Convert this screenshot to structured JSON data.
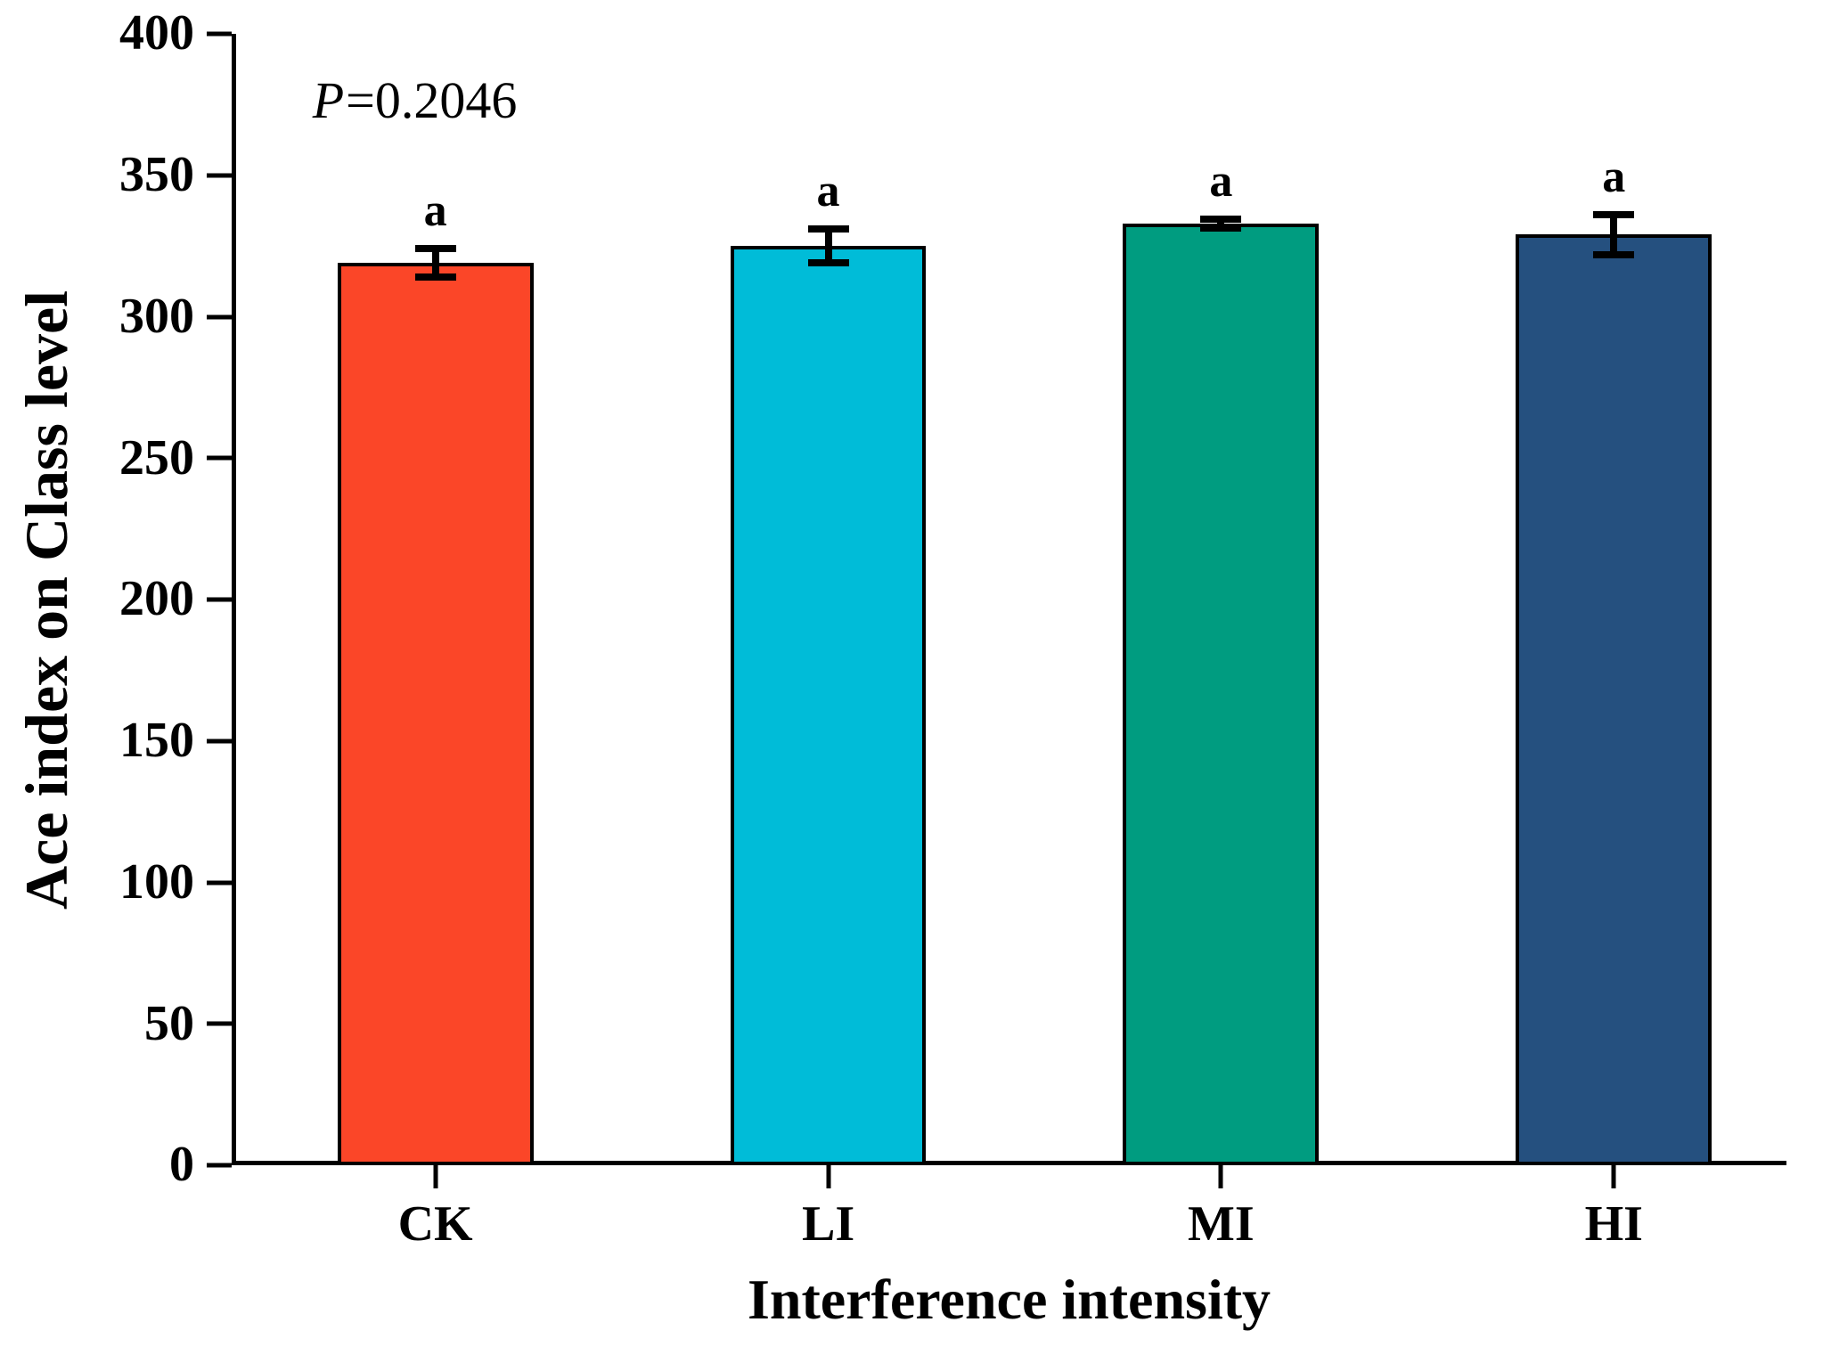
{
  "chart_data": {
    "type": "bar",
    "title": "",
    "annotation": {
      "italic": "P",
      "rest": "=0.2046"
    },
    "xlabel": "Interference intensity",
    "ylabel": "Ace index on Class level",
    "categories": [
      "CK",
      "LI",
      "MI",
      "HI"
    ],
    "values": [
      319,
      325,
      333,
      329
    ],
    "errors": [
      5,
      6,
      1.5,
      7
    ],
    "sig_letters": [
      "a",
      "a",
      "a",
      "a"
    ],
    "bar_colors": [
      "#FB4628",
      "#00BCD8",
      "#009C80",
      "#25507F"
    ],
    "bar_border_color": "#000000",
    "axis_color": "#000000",
    "ylim": [
      0,
      400
    ],
    "yticks": [
      0,
      50,
      100,
      150,
      200,
      250,
      300,
      350,
      400
    ],
    "grid": false,
    "legend": null,
    "layout": {
      "bar_centers_frac": [
        0.131,
        0.3837,
        0.6363,
        0.889
      ],
      "bar_width_frac": 0.126,
      "axes_shown": [
        "left",
        "bottom"
      ]
    }
  }
}
